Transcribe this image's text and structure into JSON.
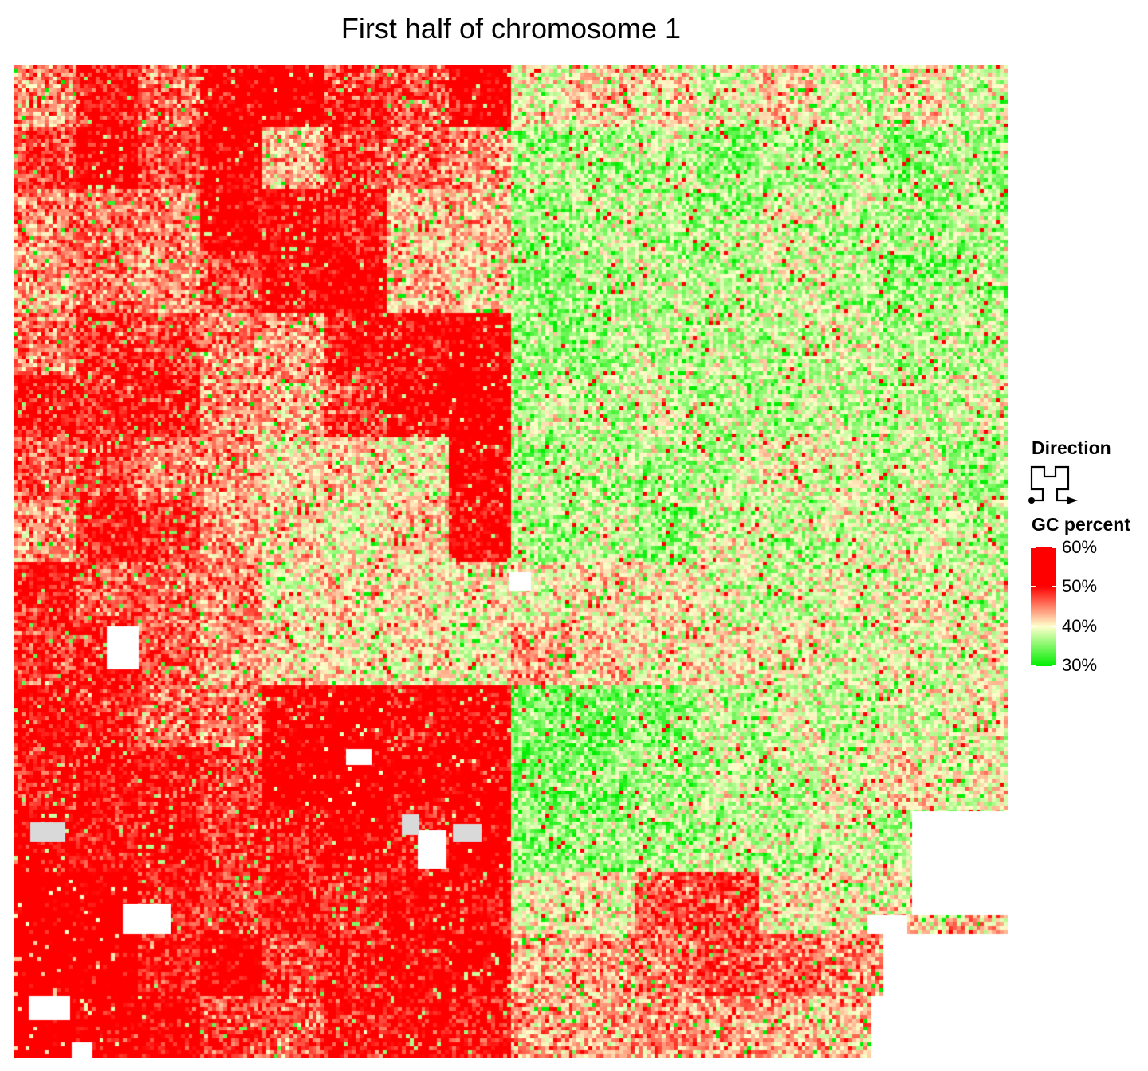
{
  "chart_data": {
    "type": "heatmap",
    "title": "First half of chromosome 1",
    "description_layout": "Hilbert curve",
    "xlabel": "",
    "ylabel": "",
    "legend": [
      {
        "title": "Direction",
        "kind": "hilbert-curve-glyph"
      },
      {
        "title": "GC percent",
        "kind": "continuous",
        "stops": [
          {
            "value": 30,
            "color": "#00ee00"
          },
          {
            "value": 40,
            "color": "#ffffcc"
          },
          {
            "value": 50,
            "color": "#ff0000"
          },
          {
            "value": 60,
            "color": "#ff0000"
          }
        ],
        "ticks": [
          {
            "value": 60,
            "label": "60%"
          },
          {
            "value": 50,
            "label": "50%"
          },
          {
            "value": 40,
            "label": "40%"
          },
          {
            "value": 30,
            "label": "30%"
          }
        ]
      }
    ],
    "grid": false,
    "legend_placement": "right",
    "missing_color": "#d9d9d9",
    "blocks_16x16_gc_percent": [
      [
        44,
        50,
        46,
        52,
        53,
        49,
        47,
        52,
        40,
        42,
        41,
        39,
        42,
        38,
        41,
        39
      ],
      [
        48,
        52,
        48,
        52,
        43,
        48,
        46,
        44,
        37,
        37,
        38,
        36,
        37,
        38,
        36,
        37
      ],
      [
        45,
        46,
        45,
        52,
        51,
        50,
        42,
        43,
        36,
        38,
        37,
        37,
        39,
        38,
        37,
        37
      ],
      [
        44,
        46,
        44,
        48,
        51,
        52,
        43,
        42,
        36,
        37,
        38,
        37,
        39,
        37,
        36,
        37
      ],
      [
        45,
        49,
        48,
        45,
        44,
        50,
        51,
        52,
        36,
        37,
        38,
        38,
        38,
        39,
        37,
        38
      ],
      [
        50,
        49,
        50,
        44,
        43,
        48,
        52,
        53,
        38,
        38,
        39,
        37,
        38,
        38,
        38,
        39
      ],
      [
        47,
        48,
        45,
        44,
        41,
        42,
        40,
        52,
        37,
        38,
        37,
        38,
        40,
        39,
        38,
        37
      ],
      [
        44,
        50,
        49,
        44,
        42,
        40,
        42,
        51,
        37,
        38,
        36,
        39,
        38,
        39,
        39,
        38
      ],
      [
        50,
        47,
        46,
        45,
        40,
        42,
        41,
        41,
        40,
        41,
        41,
        39,
        38,
        39,
        40,
        39
      ],
      [
        48,
        50,
        47,
        44,
        42,
        40,
        41,
        40,
        44,
        42,
        41,
        41,
        40,
        39,
        39,
        40
      ],
      [
        51,
        49,
        46,
        45,
        52,
        53,
        51,
        52,
        35,
        35,
        36,
        38,
        39,
        38,
        39,
        40
      ],
      [
        50,
        51,
        50,
        48,
        53,
        54,
        52,
        53,
        35,
        36,
        37,
        38,
        38,
        40,
        41,
        40
      ],
      [
        52,
        50,
        51,
        49,
        50,
        52,
        50,
        53,
        36,
        36,
        37,
        38,
        38,
        39,
        38,
        38
      ],
      [
        54,
        54,
        50,
        48,
        50,
        49,
        52,
        51,
        40,
        40,
        47,
        48,
        40,
        40,
        41,
        44
      ],
      [
        56,
        55,
        50,
        53,
        48,
        50,
        51,
        52,
        43,
        44,
        46,
        48,
        46,
        44,
        44,
        null
      ],
      [
        55,
        53,
        52,
        48,
        47,
        50,
        51,
        50,
        44,
        43,
        45,
        44,
        43,
        42,
        null,
        null
      ]
    ]
  }
}
